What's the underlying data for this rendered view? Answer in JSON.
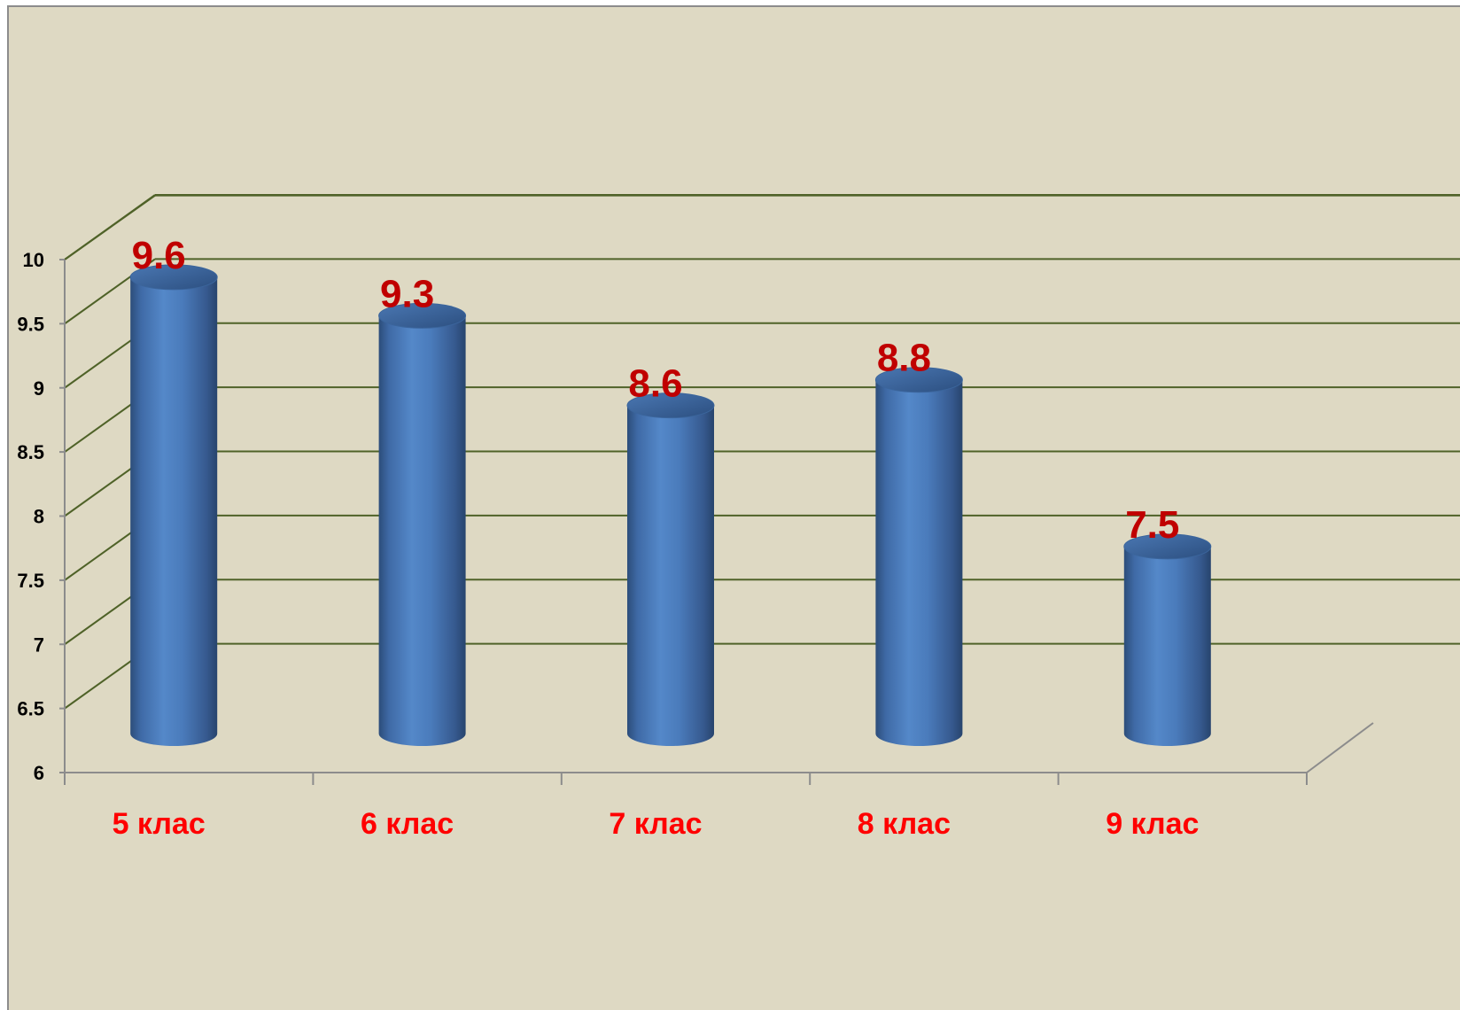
{
  "chart_data": {
    "type": "bar",
    "style": "3d-cylinder",
    "categories": [
      "5 клас",
      "6 клас",
      "7 клас",
      "8 клас",
      "9 клас"
    ],
    "series": [
      {
        "values": [
          9.6,
          9.3,
          8.6,
          8.8,
          7.5
        ]
      }
    ],
    "data_labels": [
      "9.6",
      "9.3",
      "8.6",
      "8.8",
      "7.5"
    ],
    "yticks": [
      "6",
      "6.5",
      "7",
      "7.5",
      "8",
      "8.5",
      "9",
      "9.5",
      "10"
    ],
    "ylim": [
      6,
      10
    ],
    "title": "",
    "xlabel": "",
    "ylabel": "",
    "grid": true,
    "legend": "none",
    "colors": {
      "background": "#ded9c3",
      "bar": "#4f81bd",
      "gridline": "#4f6228",
      "axis": "#8c8c8c",
      "category_label": "#ff0000",
      "data_label": "#c00000"
    }
  }
}
